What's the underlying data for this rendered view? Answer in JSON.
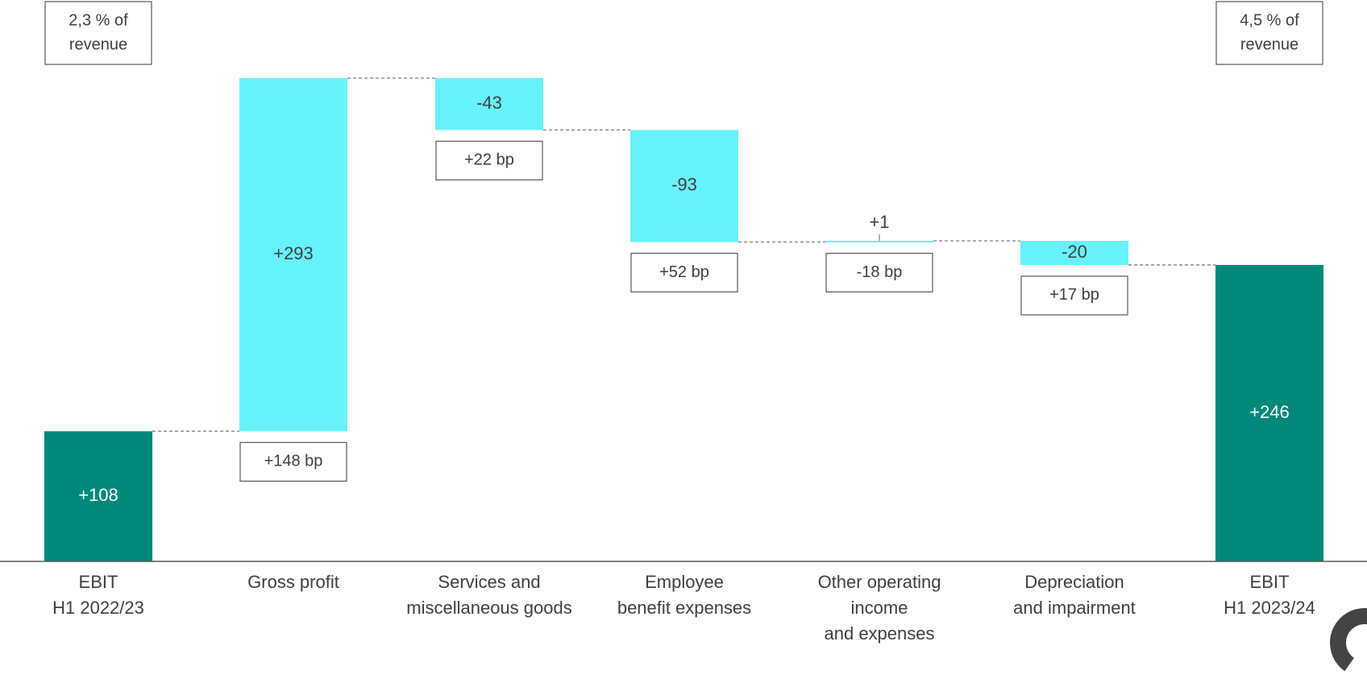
{
  "chart_data": {
    "type": "waterfall",
    "title": "",
    "xlabel": "",
    "ylabel": "",
    "categories": [
      [
        "EBIT",
        "H1 2022/23"
      ],
      [
        "Gross profit"
      ],
      [
        "Services and",
        "miscellaneous goods"
      ],
      [
        "Employee",
        "benefit expenses"
      ],
      [
        "Other operating",
        "income",
        "and expenses"
      ],
      [
        "Depreciation",
        "and impairment"
      ],
      [
        "EBIT",
        "H1 2023/24"
      ]
    ],
    "steps": [
      {
        "kind": "total",
        "value": 108,
        "label": "+108"
      },
      {
        "kind": "delta",
        "value": 293,
        "label": "+293",
        "bp": "+148 bp"
      },
      {
        "kind": "delta",
        "value": -43,
        "label": "-43",
        "bp": "+22 bp"
      },
      {
        "kind": "delta",
        "value": -93,
        "label": "-93",
        "bp": "+52 bp"
      },
      {
        "kind": "delta",
        "value": 1,
        "label": "+1",
        "bp": "-18 bp"
      },
      {
        "kind": "delta",
        "value": -20,
        "label": "-20",
        "bp": "+17 bp"
      },
      {
        "kind": "total",
        "value": 246,
        "label": "+246"
      }
    ],
    "margin_boxes": {
      "start": [
        "2,3 % of",
        "revenue"
      ],
      "end": [
        "4,5 % of",
        "revenue"
      ]
    },
    "ylim": [
      0,
      401
    ],
    "colors": {
      "total": "#00897B",
      "delta": "#66F2FB",
      "connector": "#7F7F7F",
      "axis": "#595959",
      "text": "#404040"
    }
  }
}
